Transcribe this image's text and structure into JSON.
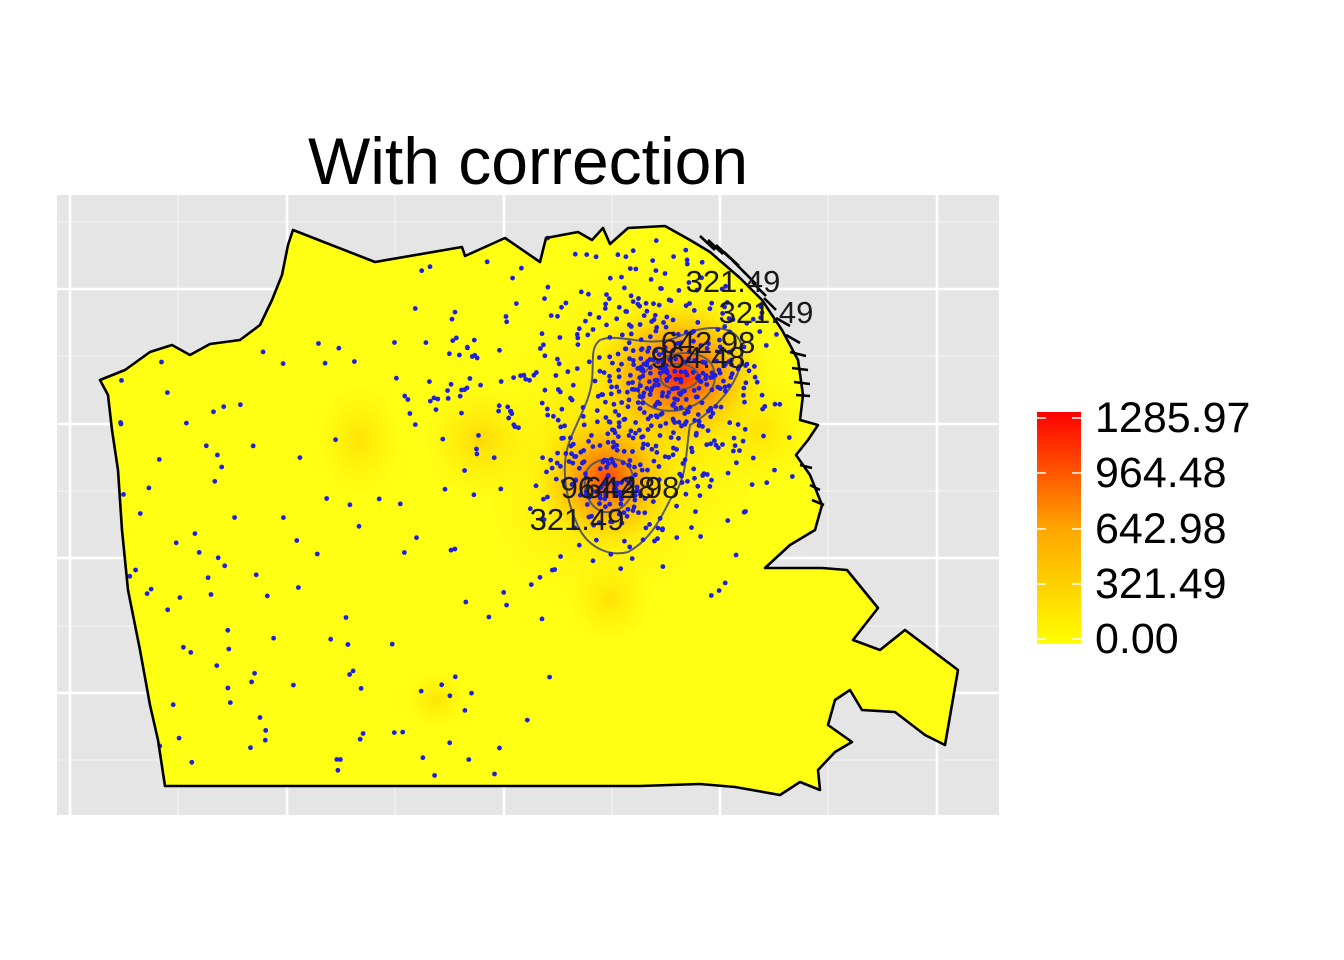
{
  "title": "With correction",
  "legend": {
    "labels": [
      "1285.97",
      "964.48",
      "642.98",
      "321.49",
      "0.00"
    ],
    "max": 1285.97,
    "colors": {
      "low": "#ffff00",
      "mid": "#ffa500",
      "high": "#ff0000"
    }
  },
  "contour_labels": [
    "321.49",
    "321.49",
    "642.98",
    "964.48",
    "964.48",
    "642.98",
    "321.49"
  ],
  "colors": {
    "panel_bg": "#e5e5e5",
    "grid": "#ffffff",
    "map_fill": "#ffff14",
    "boundary": "#000000",
    "points": "#1f1fe0",
    "contour": "#5c5c5c"
  }
}
